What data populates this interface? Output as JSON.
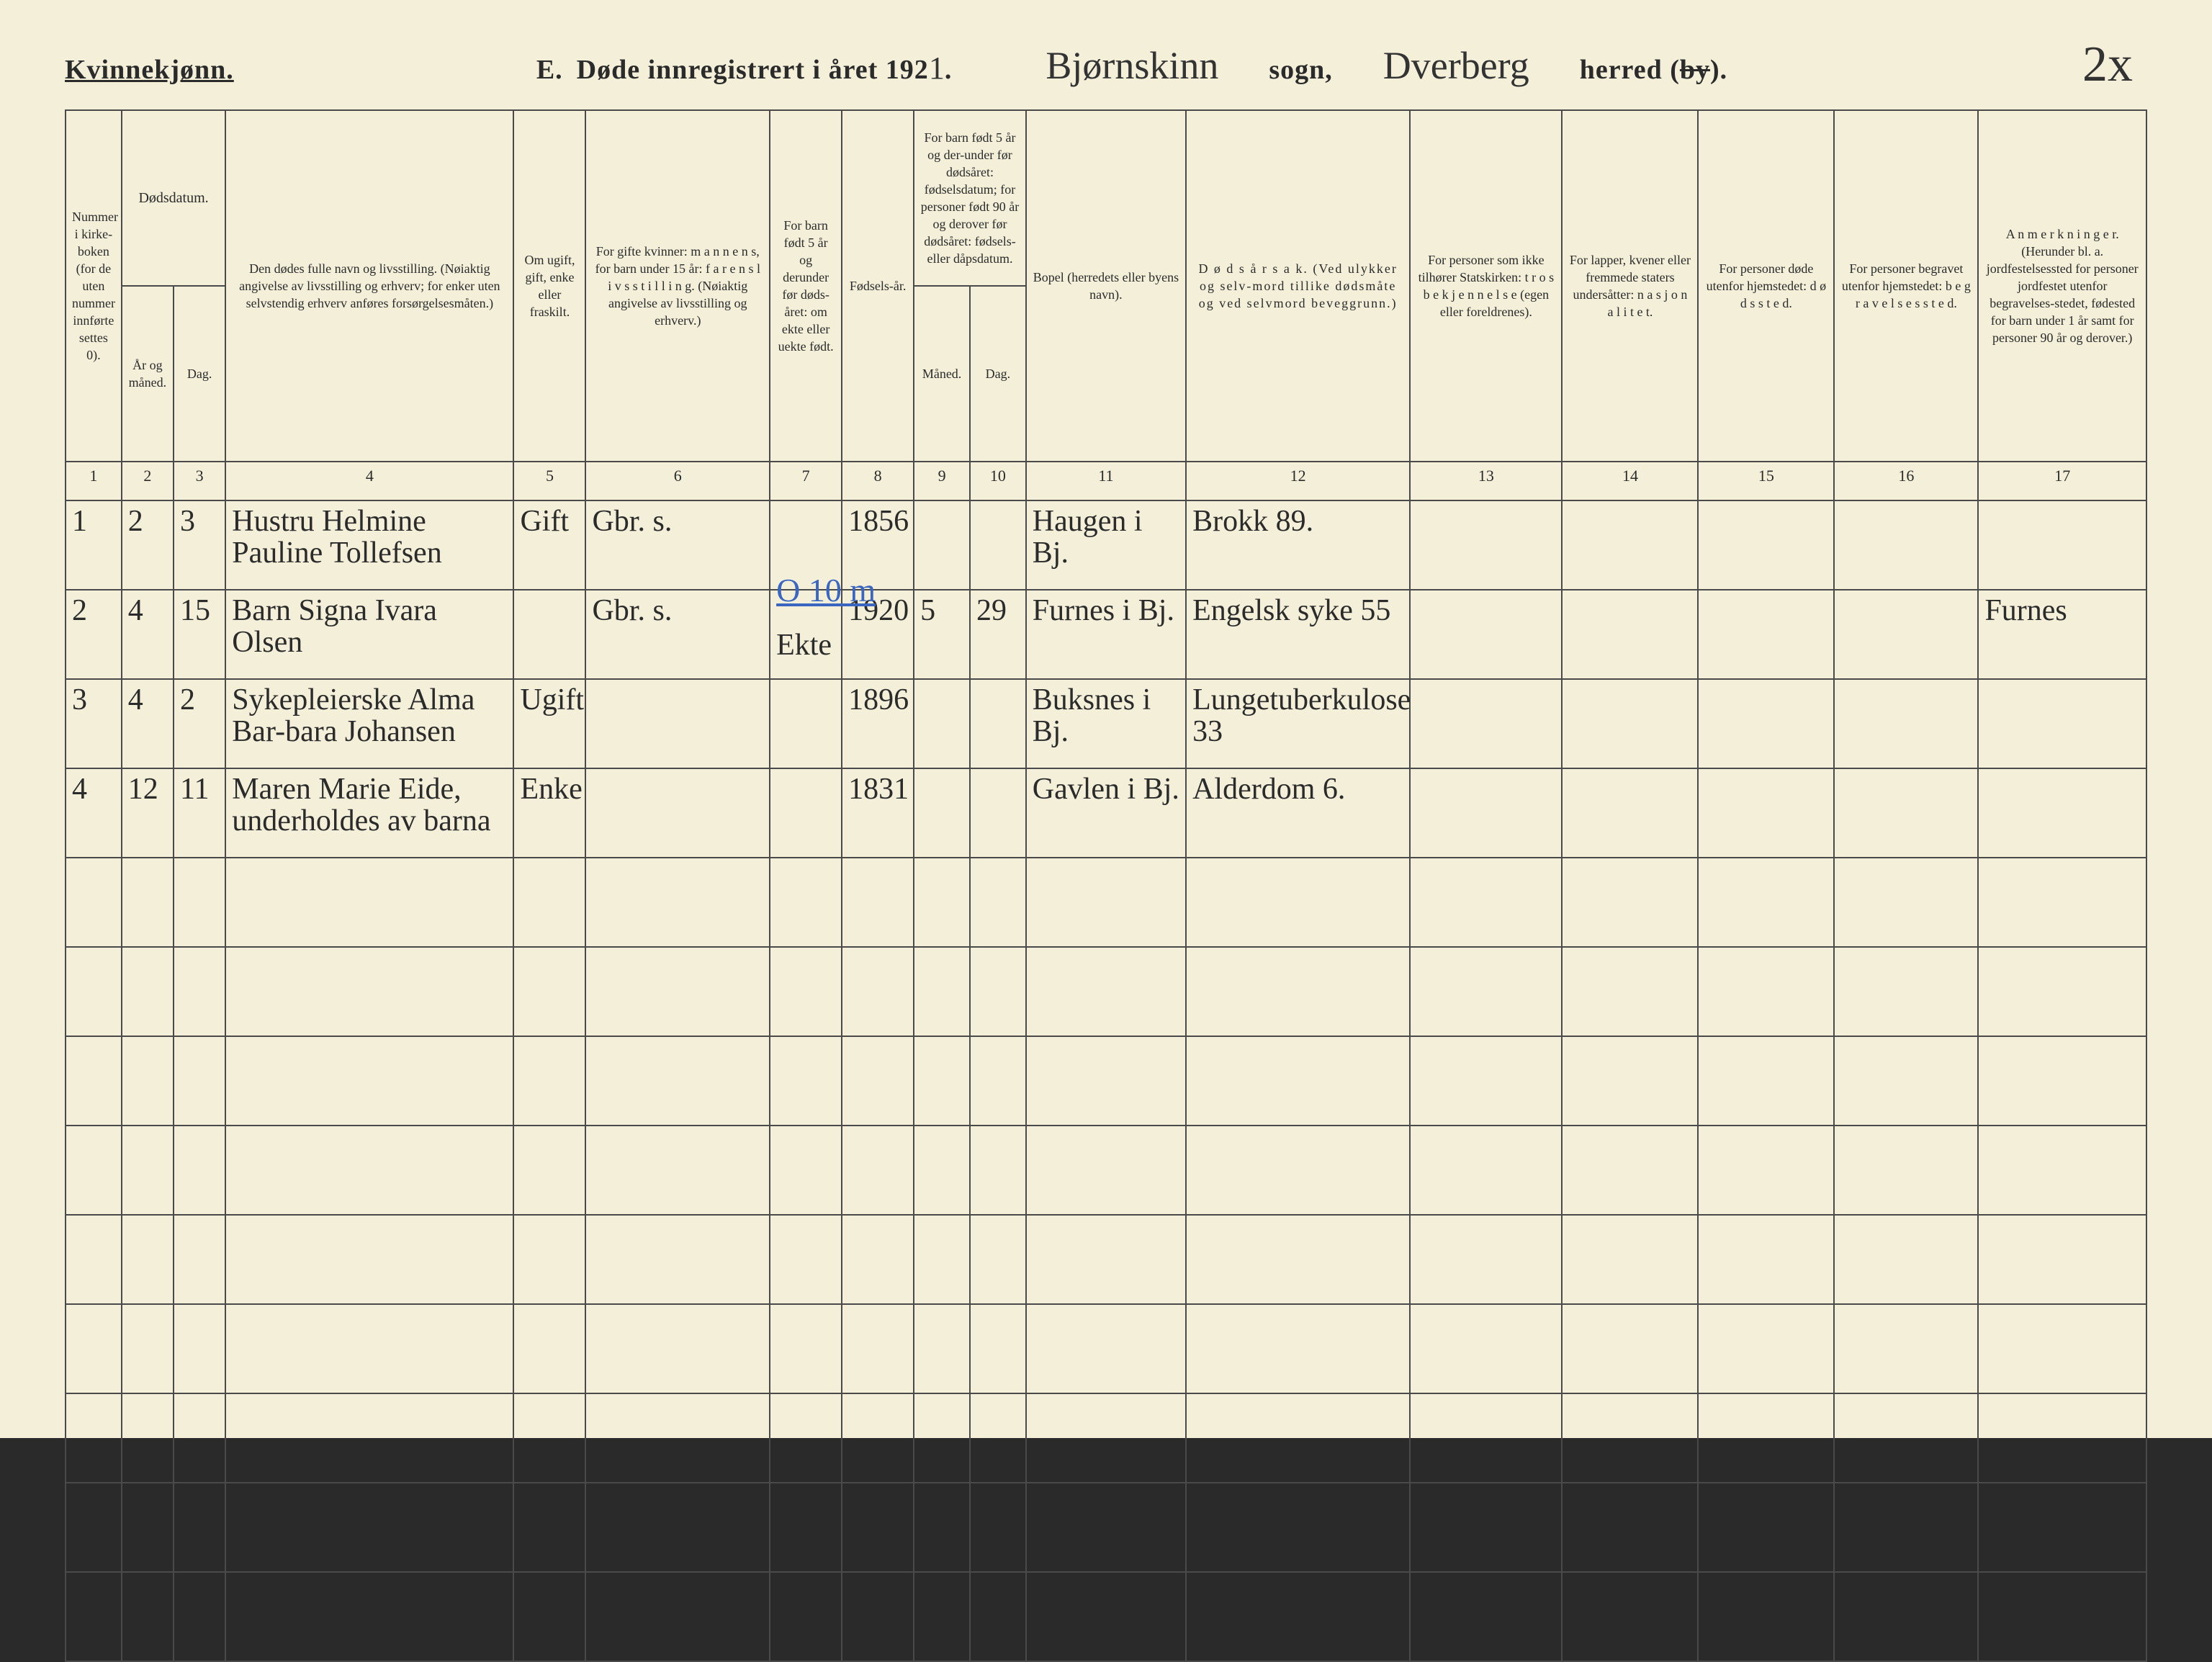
{
  "page": {
    "gender_label": "Kvinnekjønn.",
    "section_letter": "E.",
    "title_prefix": "Døde innregistrert i året 192",
    "year_suffix_hw": "1",
    "title_period": ".",
    "sogn_hw": "Bjørnskinn",
    "label_sogn": "sogn,",
    "herred_hw": "Dverberg",
    "label_herred": "herred (by).",
    "by_struck": true,
    "page_number_hw": "2x"
  },
  "columns": {
    "c1": "Nummer i kirke-boken (for de uten nummer innførte settes 0).",
    "c2_group": "Dødsdatum.",
    "c2": "År og måned.",
    "c3": "Dag.",
    "c4": "Den dødes fulle navn og livsstilling. (Nøiaktig angivelse av livsstilling og erhverv; for enker uten selvstendig erhverv anføres forsørgelsesmåten.)",
    "c5": "Om ugift, gift, enke eller fraskilt.",
    "c6": "For gifte kvinner: m a n n e n s, for barn under 15 år: f a r e n s  l i v s s t i l l i n g. (Nøiaktig angivelse av livsstilling og erhverv.)",
    "c7": "For barn født 5 år og derunder før døds-året: om ekte eller uekte født.",
    "c8": "Fødsels-år.",
    "c9_10_group": "For barn født 5 år og der-under før dødsåret: fødselsdatum; for personer født 90 år og derover før dødsåret: fødsels- eller dåpsdatum.",
    "c9": "Måned.",
    "c10": "Dag.",
    "c11": "Bopel (herredets eller byens navn).",
    "c12": "D ø d s å r s a k. (Ved ulykker og selv-mord tillike dødsmåte og ved selvmord beveggrunn.)",
    "c13": "For personer som ikke tilhører Statskirken: t r o s b e k j e n n e l s e (egen eller foreldrenes).",
    "c14": "For lapper, kvener eller fremmede staters undersåtter: n a s j o n a l i t e t.",
    "c15": "For personer døde utenfor hjemstedet: d ø d s s t e d.",
    "c16": "For personer begravet utenfor hjemstedet: b e g r a v e l s e s s t e d.",
    "c17": "A n m e r k n i n g e r. (Herunder bl. a. jordfestelsessted for personer jordfestet utenfor begravelses-stedet, fødested for barn under 1 år samt for personer 90 år og derover.)"
  },
  "colnums": [
    "1",
    "2",
    "3",
    "4",
    "5",
    "6",
    "7",
    "8",
    "9",
    "10",
    "11",
    "12",
    "13",
    "14",
    "15",
    "16",
    "17"
  ],
  "rows": [
    {
      "n": "1",
      "mon": "2",
      "day": "3",
      "name": "Hustru Helmine Pauline Tollefsen",
      "civil": "Gift",
      "rel": "Gbr. s.",
      "ekte": "",
      "birth": "1856",
      "bm": "",
      "bd": "",
      "bopel": "Haugen i Bj.",
      "cause": "Brokk 89.",
      "c13": "",
      "c14": "",
      "c15": "",
      "c16": "",
      "c17": "",
      "blue_note": ""
    },
    {
      "n": "2",
      "mon": "4",
      "day": "15",
      "name": "Barn Signa Ivara Olsen",
      "civil": "",
      "rel": "Gbr. s.",
      "ekte": "Ekte",
      "birth": "1920",
      "bm": "5",
      "bd": "29",
      "bopel": "Furnes i Bj.",
      "cause": "Engelsk syke 55",
      "c13": "",
      "c14": "",
      "c15": "",
      "c16": "",
      "c17": "Furnes",
      "blue_note": "O 10 m"
    },
    {
      "n": "3",
      "mon": "4",
      "day": "2",
      "name": "Sykepleierske Alma Bar-bara Johansen",
      "civil": "Ugift",
      "rel": "",
      "ekte": "",
      "birth": "1896",
      "bm": "",
      "bd": "",
      "bopel": "Buksnes i Bj.",
      "cause": "Lungetuberkulose 33",
      "c13": "",
      "c14": "",
      "c15": "",
      "c16": "",
      "c17": "",
      "blue_note": ""
    },
    {
      "n": "4",
      "mon": "12",
      "day": "11",
      "name": "Maren Marie Eide, underholdes av barna",
      "civil": "Enke",
      "rel": "",
      "ekte": "",
      "birth": "1831",
      "bm": "",
      "bd": "",
      "bopel": "Gavlen i Bj.",
      "cause": "Alderdom 6.",
      "c13": "",
      "c14": "",
      "c15": "",
      "c16": "",
      "c17": "",
      "blue_note": ""
    }
  ],
  "empty_rows": 9,
  "colors": {
    "paper": "#f3efd9",
    "ink": "#2b2b2b",
    "rule": "#4a4a4a",
    "blue_pencil": "#3a66c0",
    "outer_bg": "#2a2a2a"
  }
}
